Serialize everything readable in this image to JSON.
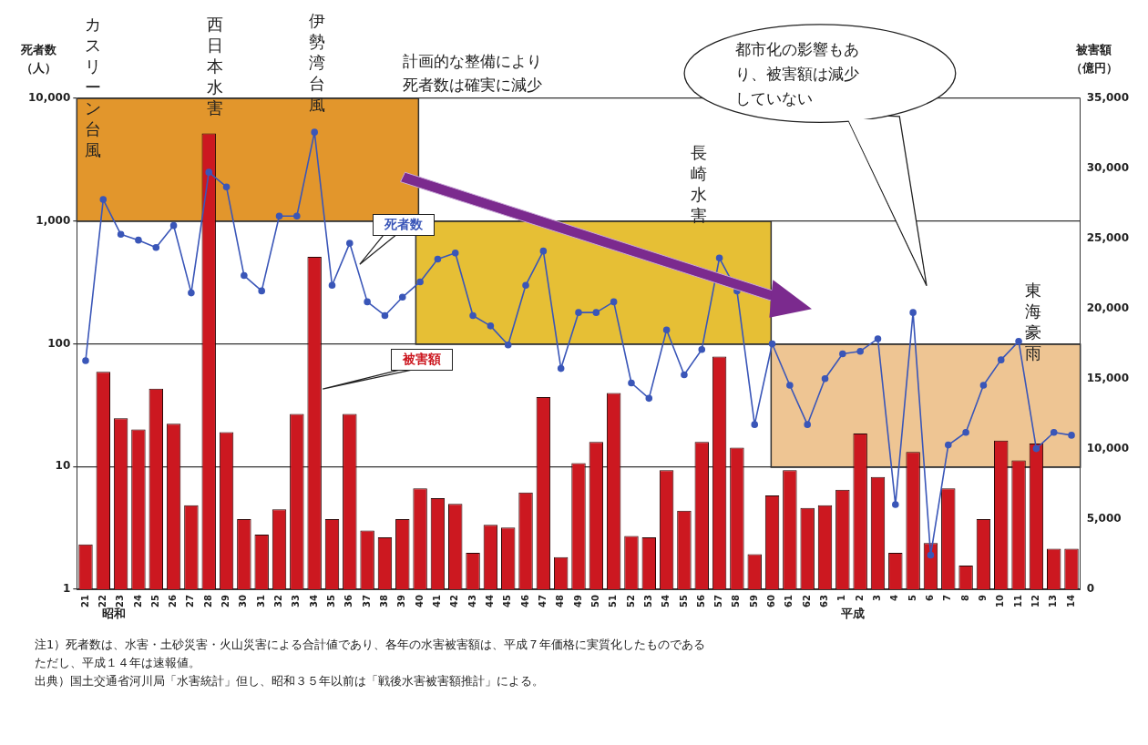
{
  "chart_data": {
    "type": "bar",
    "ylabel": "死者数（人）",
    "y2label": "被害額（億円）",
    "categories": [
      "21",
      "22",
      "23",
      "24",
      "25",
      "26",
      "27",
      "28",
      "29",
      "30",
      "31",
      "32",
      "33",
      "34",
      "35",
      "36",
      "37",
      "38",
      "39",
      "40",
      "41",
      "42",
      "43",
      "44",
      "45",
      "46",
      "47",
      "48",
      "49",
      "50",
      "51",
      "52",
      "53",
      "54",
      "55",
      "56",
      "57",
      "58",
      "59",
      "60",
      "61",
      "62",
      "63",
      "1",
      "2",
      "3",
      "4",
      "5",
      "6",
      "7",
      "8",
      "9",
      "10",
      "11",
      "12",
      "13",
      "14"
    ],
    "series": [
      {
        "name": "被害額",
        "axis": "y2",
        "color": "#cc1820",
        "values": [
          3200,
          15500,
          12200,
          11400,
          14300,
          11800,
          6000,
          32500,
          11200,
          5000,
          3900,
          5700,
          12500,
          23700,
          5000,
          12500,
          4200,
          3700,
          5000,
          7200,
          6500,
          6100,
          2600,
          4600,
          4400,
          6900,
          13700,
          2300,
          9000,
          10500,
          14000,
          3800,
          3700,
          8500,
          5600,
          10500,
          16600,
          10100,
          2500,
          6700,
          8500,
          5800,
          6000,
          7100,
          11100,
          8000,
          2600,
          9800,
          3300,
          7200,
          1700,
          5000,
          10600,
          9200,
          10400,
          2900,
          2900
        ]
      },
      {
        "name": "死者数",
        "type": "line",
        "axis": "y",
        "color": "#3a56b8",
        "values": [
          73,
          1500,
          780,
          700,
          610,
          920,
          260,
          2500,
          1900,
          360,
          270,
          1100,
          1100,
          5300,
          300,
          660,
          220,
          170,
          240,
          320,
          490,
          550,
          170,
          140,
          98,
          300,
          570,
          63,
          180,
          180,
          220,
          48,
          36,
          130,
          56,
          90,
          500,
          270,
          22,
          100,
          46,
          22,
          52,
          83,
          87,
          110,
          4.9,
          180,
          1.9,
          15,
          19,
          46,
          74,
          105,
          14,
          19,
          18
        ]
      }
    ],
    "log": "y",
    "ylim": [
      1,
      10000
    ],
    "yticks": [
      1,
      10,
      100,
      {
        "value": 1000,
        "label": "1,000"
      },
      {
        "value": 10000,
        "label": "10,000"
      }
    ],
    "y2lim": [
      0,
      35000
    ],
    "y2ticks": [
      0,
      {
        "value": 5000,
        "label": "5,000"
      },
      {
        "value": 10000,
        "label": "10,000"
      },
      {
        "value": 15000,
        "label": "15,000"
      },
      {
        "value": 20000,
        "label": "20,000"
      },
      {
        "value": 25000,
        "label": "25,000"
      },
      {
        "value": 30000,
        "label": "30,000"
      },
      {
        "value": 35000,
        "label": "35,000"
      }
    ],
    "grid": "y",
    "legend": false,
    "marker": "circle",
    "annotations": [
      "計画的な整備により死者数は確実に減少",
      "都市化の影響もあり、被害額は減少していない",
      "カスリーン台風",
      "西日本水害",
      "伊勢湾台風",
      "長崎水害",
      "東海豪雨",
      "昭和",
      "平成",
      "注1）死者数は、水害・土砂災害・火山災害による合計値であり、各年の水害被害額は、平成７年価格に実質化したものである",
      "ただし、平成１４年は速報値。",
      "出典）国土交通省河川局「水害統計」但し、昭和３５年以前は「戦後水害被害額推計」による。"
    ]
  }
}
